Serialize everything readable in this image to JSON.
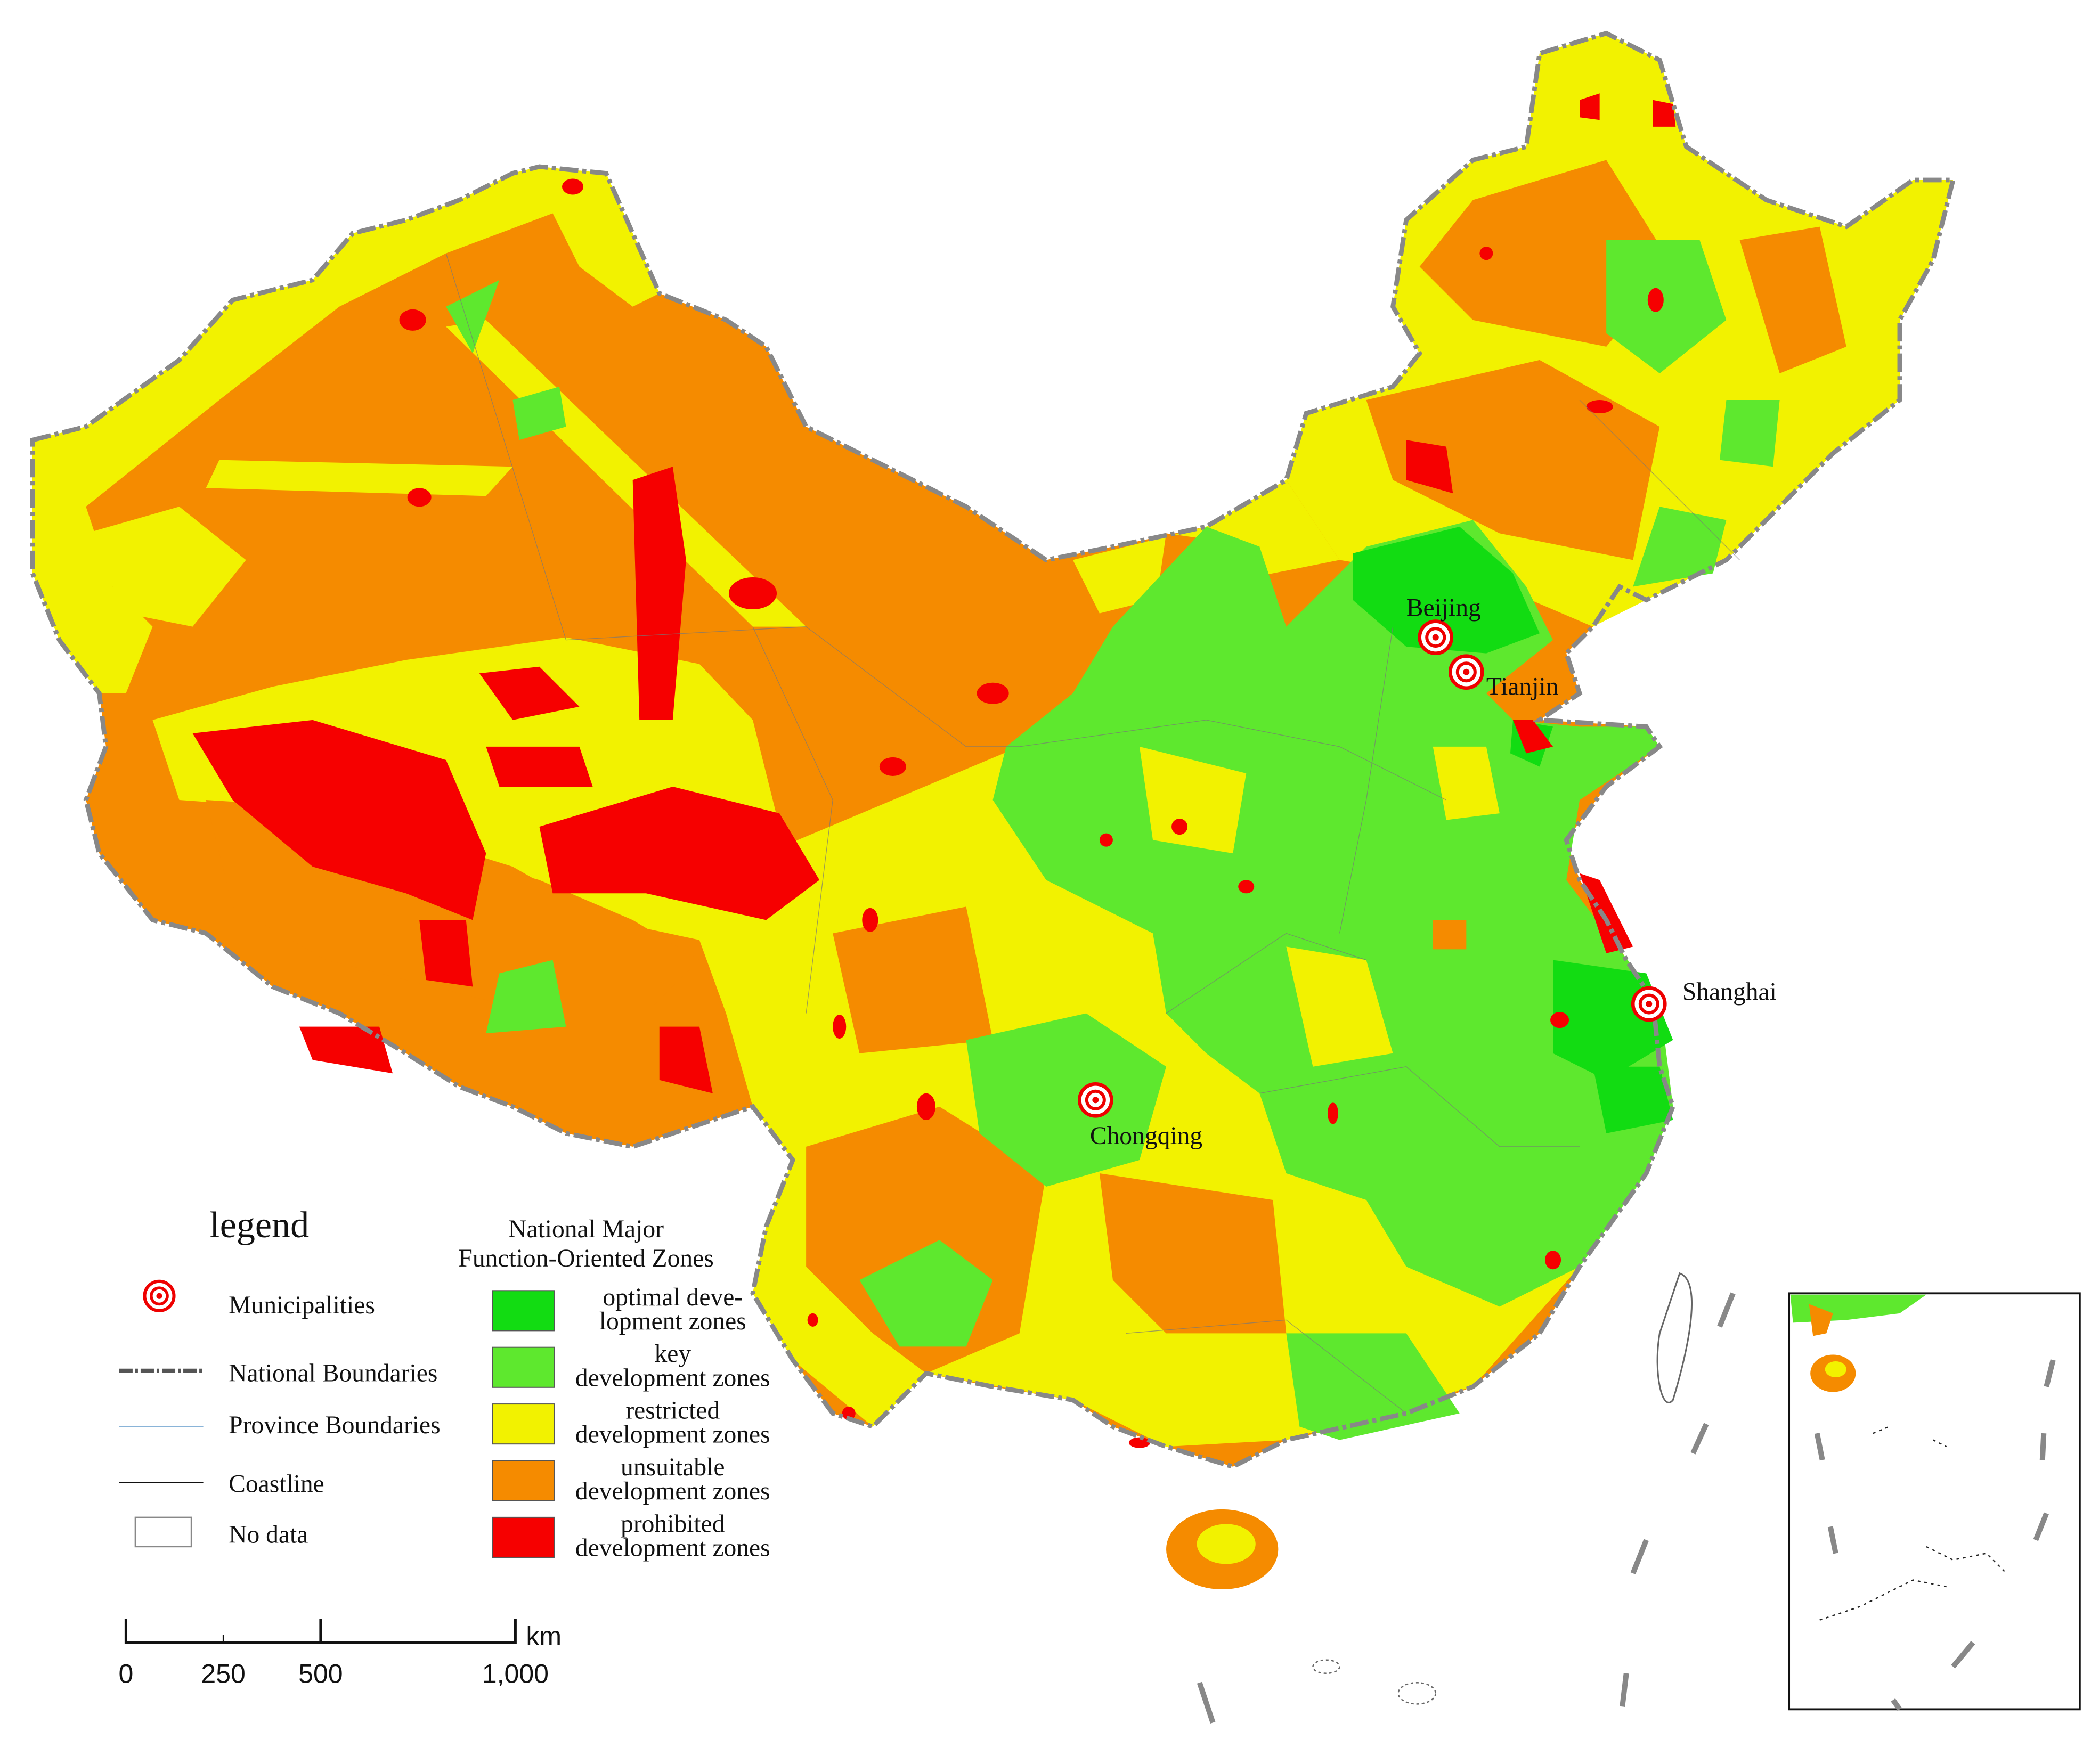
{
  "legend": {
    "title": "legend",
    "items": [
      {
        "label": "Municipalities"
      },
      {
        "label": "National Boundaries"
      },
      {
        "label": "Province Boundaries"
      },
      {
        "label": "Coastline"
      },
      {
        "label": "No data"
      }
    ]
  },
  "zones": {
    "title_lines": [
      "National Major",
      "Function-Oriented Zones"
    ],
    "items": [
      {
        "label_lines": [
          "optimal deve-",
          "lopment zones"
        ],
        "color": "#12dc12"
      },
      {
        "label_lines": [
          "key",
          "development zones"
        ],
        "color": "#5ee82e"
      },
      {
        "label_lines": [
          "restricted",
          "development zones"
        ],
        "color": "#f2f200"
      },
      {
        "label_lines": [
          "unsuitable",
          "development zones"
        ],
        "color": "#f58b00"
      },
      {
        "label_lines": [
          "prohibited",
          "development zones"
        ],
        "color": "#f60000"
      }
    ]
  },
  "cities": [
    {
      "name": "Beijing"
    },
    {
      "name": "Tianjin"
    },
    {
      "name": "Shanghai"
    },
    {
      "name": "Chongqing"
    }
  ],
  "scale": {
    "unit": "km",
    "ticks": [
      {
        "value": 0,
        "label": "0"
      },
      {
        "value": 250,
        "label": "250"
      },
      {
        "value": 500,
        "label": "500"
      },
      {
        "value": 1000,
        "label": "1,000"
      }
    ]
  }
}
